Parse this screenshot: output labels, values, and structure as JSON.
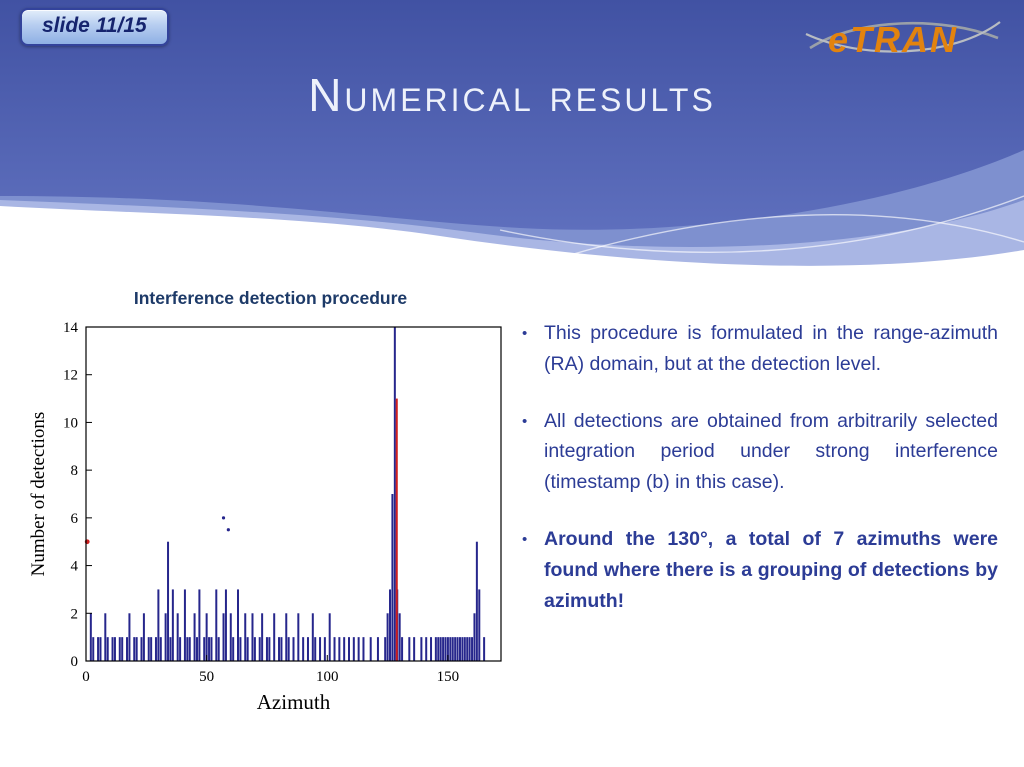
{
  "slide": {
    "badge_label": "slide 11/15",
    "title": "Numerical results",
    "logo_text": "eTRAN"
  },
  "bullets": [
    {
      "text": "This procedure is formulated in the range-azimuth (RA) domain, but at the detection level."
    },
    {
      "text": "All detections are obtained from arbitrarily selected integration period under strong interference (timestamp (b) in this case)."
    },
    {
      "text": "Around the 130°, a total of 7 azimuths were found where there is a grouping of detections by azimuth!"
    }
  ],
  "chart_data": {
    "type": "bar",
    "title": "Interference detection procedure",
    "xlabel": "Azimuth",
    "ylabel": "Number of detections",
    "xlim": [
      0,
      172
    ],
    "ylim": [
      0,
      14
    ],
    "xticks": [
      0,
      50,
      100,
      150
    ],
    "yticks": [
      0,
      2,
      4,
      6,
      8,
      10,
      12,
      14
    ],
    "bar_color": "#26268c",
    "highlight_color": "#cf1f1f",
    "bars": [
      [
        2,
        2
      ],
      [
        3,
        1
      ],
      [
        5,
        1
      ],
      [
        6,
        1
      ],
      [
        8,
        2
      ],
      [
        9,
        1
      ],
      [
        11,
        1
      ],
      [
        12,
        1
      ],
      [
        14,
        1
      ],
      [
        15,
        1
      ],
      [
        17,
        1
      ],
      [
        18,
        2
      ],
      [
        20,
        1
      ],
      [
        21,
        1
      ],
      [
        23,
        1
      ],
      [
        24,
        2
      ],
      [
        26,
        1
      ],
      [
        27,
        1
      ],
      [
        29,
        1
      ],
      [
        30,
        3
      ],
      [
        31,
        1
      ],
      [
        33,
        2
      ],
      [
        34,
        5
      ],
      [
        35,
        1
      ],
      [
        36,
        3
      ],
      [
        38,
        2
      ],
      [
        39,
        1
      ],
      [
        41,
        3
      ],
      [
        42,
        1
      ],
      [
        43,
        1
      ],
      [
        45,
        2
      ],
      [
        46,
        1
      ],
      [
        47,
        3
      ],
      [
        49,
        1
      ],
      [
        50,
        2
      ],
      [
        51,
        1
      ],
      [
        52,
        1
      ],
      [
        54,
        3
      ],
      [
        55,
        1
      ],
      [
        57,
        2
      ],
      [
        58,
        3
      ],
      [
        60,
        2
      ],
      [
        61,
        1
      ],
      [
        63,
        3
      ],
      [
        64,
        1
      ],
      [
        66,
        2
      ],
      [
        67,
        1
      ],
      [
        69,
        2
      ],
      [
        70,
        1
      ],
      [
        72,
        1
      ],
      [
        73,
        2
      ],
      [
        75,
        1
      ],
      [
        76,
        1
      ],
      [
        78,
        2
      ],
      [
        80,
        1
      ],
      [
        81,
        1
      ],
      [
        83,
        2
      ],
      [
        84,
        1
      ],
      [
        86,
        1
      ],
      [
        88,
        2
      ],
      [
        90,
        1
      ],
      [
        92,
        1
      ],
      [
        94,
        2
      ],
      [
        95,
        1
      ],
      [
        97,
        1
      ],
      [
        99,
        1
      ],
      [
        101,
        2
      ],
      [
        103,
        1
      ],
      [
        105,
        1
      ],
      [
        107,
        1
      ],
      [
        109,
        1
      ],
      [
        111,
        1
      ],
      [
        113,
        1
      ],
      [
        115,
        1
      ],
      [
        118,
        1
      ],
      [
        121,
        1
      ],
      [
        124,
        1
      ],
      [
        125,
        2
      ],
      [
        126,
        3
      ],
      [
        127,
        7
      ],
      [
        128,
        14
      ],
      [
        129,
        3
      ],
      [
        130,
        2
      ],
      [
        131,
        1
      ],
      [
        134,
        1
      ],
      [
        136,
        1
      ],
      [
        139,
        1
      ],
      [
        141,
        1
      ],
      [
        143,
        1
      ],
      [
        145,
        1
      ],
      [
        146,
        1
      ],
      [
        147,
        1
      ],
      [
        148,
        1
      ],
      [
        149,
        1
      ],
      [
        150,
        1
      ],
      [
        151,
        1
      ],
      [
        152,
        1
      ],
      [
        153,
        1
      ],
      [
        154,
        1
      ],
      [
        155,
        1
      ],
      [
        156,
        1
      ],
      [
        157,
        1
      ],
      [
        158,
        1
      ],
      [
        159,
        1
      ],
      [
        160,
        1
      ],
      [
        161,
        2
      ],
      [
        162,
        5
      ],
      [
        163,
        3
      ],
      [
        165,
        1
      ]
    ],
    "highlight_bars": [
      [
        128.8,
        11
      ]
    ],
    "highlight_points": [
      [
        0.5,
        5
      ]
    ],
    "points": [
      [
        57,
        6
      ],
      [
        59,
        5.5
      ]
    ]
  },
  "colors": {
    "header_blue_dark": "#4152a3",
    "header_blue_light": "#5e6fbd",
    "wave_light": "#a9b6e4",
    "wave_mid": "#7e90cf",
    "badge_text": "#16246e",
    "bullet_text": "#2c3c96",
    "chart_title_text": "#1d3a68",
    "logo_orange": "#e2830f",
    "logo_gray": "#9aa0a8"
  }
}
